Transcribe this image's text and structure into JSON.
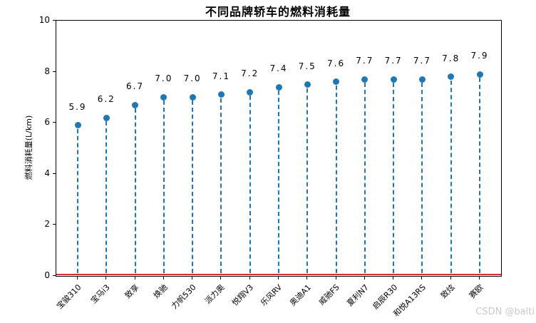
{
  "watermark": "CSDN @balti",
  "chart_data": {
    "type": "stem",
    "title": "不同品牌轿车的燃料消耗量",
    "ylabel": "燃料消耗量(L/km)",
    "xlabel": "",
    "categories": [
      "宝骏310",
      "宝马i3",
      "致享",
      "焕驰",
      "力帆530",
      "派力奥",
      "悦翔V3",
      "乐风RV",
      "奥迪A1",
      "威驰FS",
      "夏利N7",
      "启辰R30",
      "和悦A13RS",
      "致炫",
      "赛欧"
    ],
    "values": [
      5.9,
      6.2,
      6.7,
      7.0,
      7.0,
      7.1,
      7.2,
      7.4,
      7.5,
      7.6,
      7.7,
      7.7,
      7.7,
      7.8,
      7.9
    ],
    "value_labels": [
      "5.9",
      "6.2",
      "6.7",
      "7.0",
      "7.0",
      "7.1",
      "7.2",
      "7.4",
      "7.5",
      "7.6",
      "7.7",
      "7.7",
      "7.7",
      "7.8",
      "7.9"
    ],
    "ylim": [
      0,
      10
    ],
    "yticks": [
      0,
      2,
      4,
      6,
      8,
      10
    ],
    "x_tick_rotation": 45,
    "grid": false,
    "legend_position": "none",
    "colors": {
      "stem": "#1f77b4",
      "marker": "#1f77b4",
      "baseline": "#cc3333",
      "axis": "#000000",
      "watermark": "#c9c9c9"
    }
  }
}
